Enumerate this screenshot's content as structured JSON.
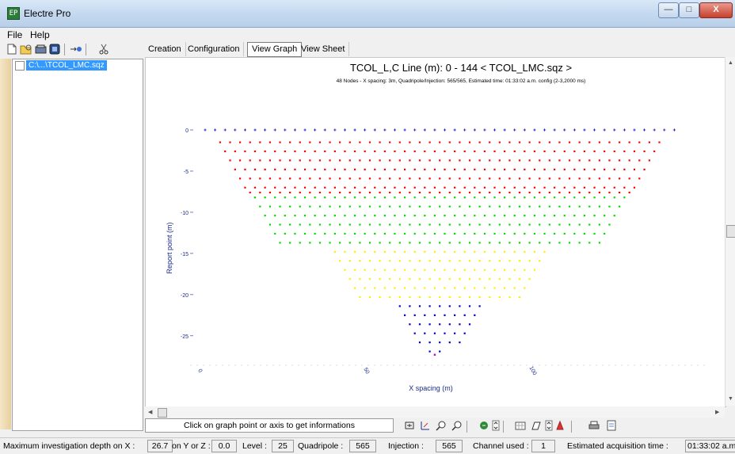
{
  "window": {
    "title": "Electre Pro",
    "app_icon_glyph": "EP",
    "min_glyph": "—",
    "max_glyph": "□",
    "close_glyph": "X"
  },
  "menu": {
    "file": "File",
    "help": "Help"
  },
  "toolbar": {
    "icons": [
      "new-file-icon",
      "open-folder-icon",
      "save-icon",
      "settings-icon",
      "export-icon",
      "cut-icon"
    ]
  },
  "tree": {
    "item": "C:\\...\\TCOL_LMC.sqz"
  },
  "tabs": [
    "Creation",
    "Configuration",
    "View Graph",
    "View Sheet"
  ],
  "active_tab": "View Graph",
  "graph": {
    "title": "TCOL_L,C   Line (m): 0 - 144 < TCOL_LMC.sqz >",
    "subtitle": "48 Nodes  - X spacing: 3m, Quadripole/Injection: 565/565, Estimated time: 01:33:02 a.m. config (2-3,2000 ms)"
  },
  "chart_data": {
    "type": "scatter",
    "title": "TCOL_L,C   Line (m): 0 - 144 < TCOL_LMC.sqz >",
    "xlabel": "X spacing (m)",
    "ylabel": "Report point (m)",
    "xlim": [
      0,
      144
    ],
    "ylim": [
      -28,
      0
    ],
    "x_ticks": [
      {
        "value": 0,
        "label": "0"
      },
      {
        "value": 50,
        "label": "50"
      },
      {
        "value": 100,
        "label": "100"
      }
    ],
    "y_ticks": [
      {
        "value": 0,
        "label": "0"
      },
      {
        "value": -5,
        "label": "-5"
      },
      {
        "value": -10,
        "label": "-10"
      },
      {
        "value": -15,
        "label": "-15"
      },
      {
        "value": -20,
        "label": "-20"
      },
      {
        "value": -25,
        "label": "-25"
      }
    ],
    "node_spacing": 3,
    "node_count": 48,
    "electrodes": {
      "y": 0,
      "x_start": 0,
      "x_end": 141,
      "color": "#0000cc",
      "marker": "+"
    },
    "row_groups": [
      {
        "color": "#ff0000",
        "rows": [
          {
            "y": -1.5,
            "x_start": 4.5,
            "x_end": 136.5
          },
          {
            "y": -2.6,
            "x_start": 6.0,
            "x_end": 135.0
          },
          {
            "y": -3.7,
            "x_start": 7.5,
            "x_end": 133.5
          },
          {
            "y": -4.8,
            "x_start": 9.0,
            "x_end": 132.0
          },
          {
            "y": -5.9,
            "x_start": 10.5,
            "x_end": 130.5
          },
          {
            "y": -7.0,
            "x_start": 12.0,
            "x_end": 129.0
          },
          {
            "y": -7.6,
            "x_start": 13.5,
            "x_end": 127.5
          }
        ]
      },
      {
        "color": "#00dd00",
        "rows": [
          {
            "y": -8.2,
            "x_start": 15.0,
            "x_end": 126.0
          },
          {
            "y": -9.3,
            "x_start": 16.5,
            "x_end": 124.5
          },
          {
            "y": -10.4,
            "x_start": 18.0,
            "x_end": 123.0
          },
          {
            "y": -11.5,
            "x_start": 19.5,
            "x_end": 121.5
          },
          {
            "y": -12.6,
            "x_start": 21.0,
            "x_end": 120.0
          },
          {
            "y": -13.7,
            "x_start": 22.5,
            "x_end": 118.5
          }
        ]
      },
      {
        "color": "#ffee00",
        "rows": [
          {
            "y": -14.8,
            "x_start": 39.0,
            "x_end": 103.5
          },
          {
            "y": -15.9,
            "x_start": 40.5,
            "x_end": 102.0
          },
          {
            "y": -17.0,
            "x_start": 42.0,
            "x_end": 100.5
          },
          {
            "y": -18.1,
            "x_start": 43.5,
            "x_end": 99.0
          },
          {
            "y": -19.2,
            "x_start": 45.0,
            "x_end": 97.5
          },
          {
            "y": -20.3,
            "x_start": 46.5,
            "x_end": 96.0
          }
        ]
      },
      {
        "color": "#0000cc",
        "rows": [
          {
            "y": -21.4,
            "x_start": 58.5,
            "x_end": 84.0
          },
          {
            "y": -22.5,
            "x_start": 60.0,
            "x_end": 82.5
          },
          {
            "y": -23.6,
            "x_start": 61.5,
            "x_end": 81.0
          },
          {
            "y": -24.7,
            "x_start": 63.0,
            "x_end": 79.5
          },
          {
            "y": -25.8,
            "x_start": 64.5,
            "x_end": 76.5
          },
          {
            "y": -26.9,
            "x_start": 67.5,
            "x_end": 70.5
          }
        ]
      }
    ],
    "bottom_point": {
      "x": 69,
      "y": -27.3,
      "color": "#cc00cc"
    }
  },
  "info": {
    "hint": "Click on graph point or axis to get informations"
  },
  "bottom_tools": [
    "zoom-fit-icon",
    "select-axis-icon",
    "zoom-in-icon",
    "zoom-out-icon",
    "refresh-icon",
    "spin-icon",
    "grid-icon",
    "palette-icon",
    "spin2-icon",
    "color-icon",
    "print-icon",
    "export-icon"
  ],
  "status": {
    "depth_label": "Maximum investigation depth on X :",
    "depth_value": "26.7",
    "yz_label": "on Y or Z :",
    "yz_value": "0.0",
    "level_label": "Level :",
    "level_value": "25",
    "quad_label": "Quadripole :",
    "quad_value": "565",
    "inj_label": "Injection :",
    "inj_value": "565",
    "chan_label": "Channel used :",
    "chan_value": "1",
    "time_label": "Estimated acquisition time :",
    "time_value": "01:33:02 a.m."
  },
  "colors": {
    "accent": "#3399ff",
    "axis": "#1a2a8a"
  }
}
